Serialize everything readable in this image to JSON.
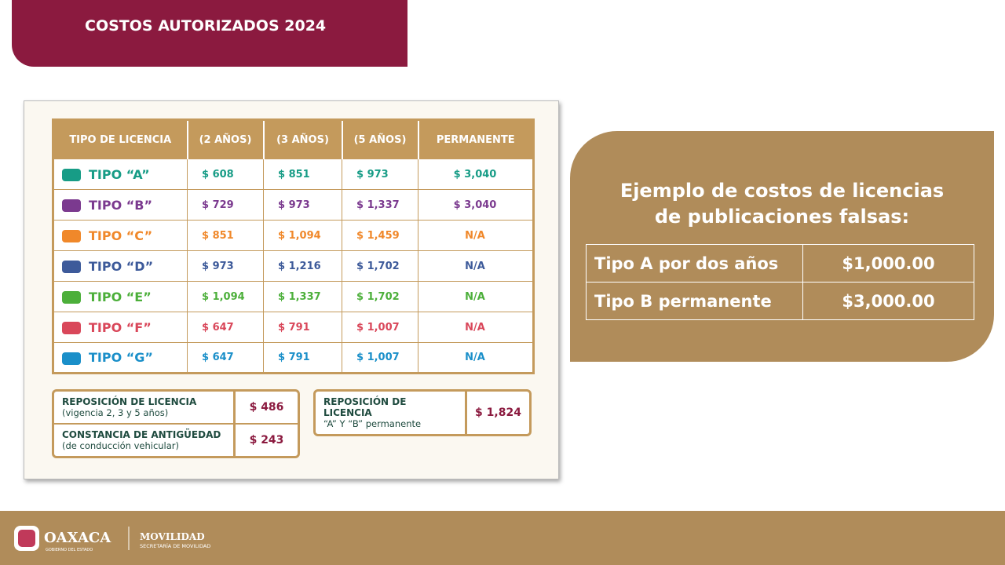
{
  "header": {
    "title": "COSTOS AUTORIZADOS 2024"
  },
  "table": {
    "headers": [
      "TIPO DE LICENCIA",
      "(2 AÑOS)",
      "(3 AÑOS)",
      "(5 AÑOS)",
      "PERMANENTE"
    ],
    "rows": [
      [
        "TIPO “A”",
        "$ 608",
        "$ 851",
        "$ 973",
        "$ 3,040"
      ],
      [
        "TIPO “B”",
        "$ 729",
        "$ 973",
        "$ 1,337",
        "$ 3,040"
      ],
      [
        "TIPO “C”",
        "$ 851",
        "$ 1,094",
        "$ 1,459",
        "N/A"
      ],
      [
        "TIPO “D”",
        "$ 973",
        "$ 1,216",
        "$ 1,702",
        "N/A"
      ],
      [
        "TIPO “E”",
        "$ 1,094",
        "$ 1,337",
        "$ 1,702",
        "N/A"
      ],
      [
        "TIPO “F”",
        "$ 647",
        "$ 791",
        "$ 1,007",
        "N/A"
      ],
      [
        "TIPO “G”",
        "$ 647",
        "$ 791",
        "$ 1,007",
        "N/A"
      ]
    ]
  },
  "extras": [
    {
      "label": "REPOSICIÓN DE LICENCIA",
      "note": "(vigencia 2, 3 y 5 años)",
      "price": "$ 486"
    },
    {
      "label": "CONSTANCIA DE ANTIGÜEDAD",
      "note": "(de conducción vehicular)",
      "price": "$ 243"
    },
    {
      "label": "REPOSICIÓN DE LICENCIA",
      "note": "“A” Y “B” permanente",
      "price": "$ 1,824"
    }
  ],
  "example": {
    "title": [
      "Ejemplo de costos de licencias",
      "de publicaciones falsas:"
    ],
    "rows": [
      [
        "Tipo A por dos años",
        "$1,000.00"
      ],
      [
        "Tipo B permanente",
        "$3,000.00"
      ]
    ]
  },
  "footer": {
    "brand": "OAXACA",
    "brand_sub": "GOBIERNO DEL ESTADO",
    "dept": "MOVILIDAD",
    "dept_sub": "SECRETARÍA DE MOVILIDAD"
  }
}
